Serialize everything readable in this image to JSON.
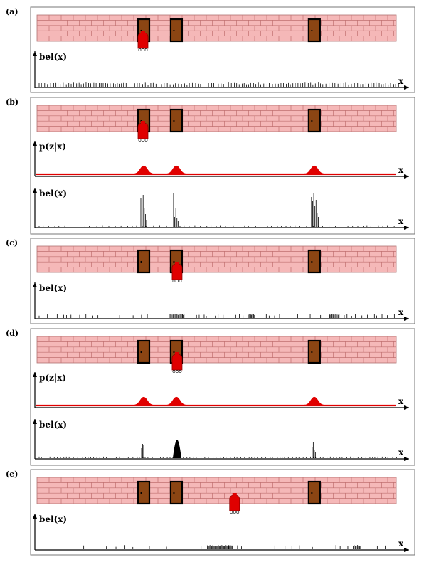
{
  "figure": {
    "panels": [
      {
        "label": "(a)",
        "robot_position": 0.295,
        "plots": [
          {
            "ylabel": "bel(x)",
            "xlabel": "x",
            "kind": "belief",
            "distribution": "uniform"
          }
        ]
      },
      {
        "label": "(b)",
        "robot_position": 0.295,
        "plots": [
          {
            "ylabel": "p(z|x)",
            "xlabel": "x",
            "kind": "likelihood",
            "peaks_at_doors": true
          },
          {
            "ylabel": "bel(x)",
            "xlabel": "x",
            "kind": "belief",
            "distribution": "peaks_at_doors"
          }
        ]
      },
      {
        "label": "(c)",
        "robot_position": 0.39,
        "plots": [
          {
            "ylabel": "bel(x)",
            "xlabel": "x",
            "kind": "belief",
            "distribution": "shifted_clusters"
          }
        ]
      },
      {
        "label": "(d)",
        "robot_position": 0.39,
        "plots": [
          {
            "ylabel": "p(z|x)",
            "xlabel": "x",
            "kind": "likelihood",
            "peaks_at_doors": true
          },
          {
            "ylabel": "bel(x)",
            "xlabel": "x",
            "kind": "belief",
            "distribution": "concentrated_second_door"
          }
        ]
      },
      {
        "label": "(e)",
        "robot_position": 0.55,
        "plots": [
          {
            "ylabel": "bel(x)",
            "xlabel": "x",
            "kind": "belief",
            "distribution": "shifted_concentration"
          }
        ]
      }
    ],
    "door_positions": [
      0.297,
      0.388,
      0.772
    ],
    "colors": {
      "wall": "#f5b8b8",
      "mortar": "#c07070",
      "door": "#8b4513",
      "door_frame": "#000000",
      "robot": "#e00000",
      "likelihood": "#e00000",
      "axis": "#000000",
      "particle": "#000000"
    }
  }
}
